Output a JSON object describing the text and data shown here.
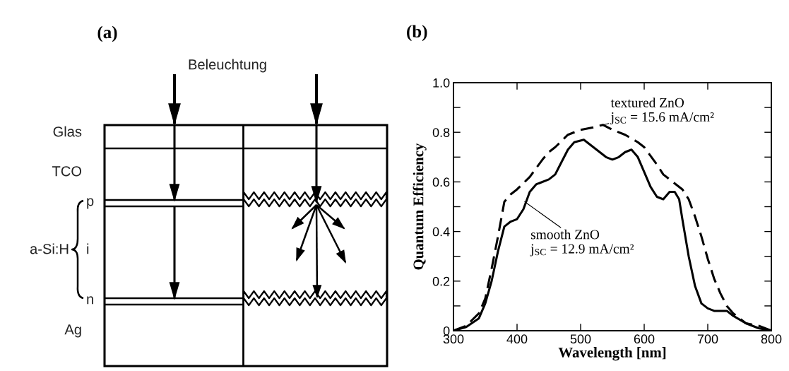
{
  "chart_data": [
    {
      "type": "other",
      "title": "(a)",
      "annotations": [
        "Beleuchtung",
        "Glas",
        "TCO",
        "p",
        "i",
        "n",
        "a-Si:H",
        "Ag"
      ]
    },
    {
      "type": "line",
      "title": "(b)",
      "xlabel": "Wavelength [nm]",
      "ylabel": "Quantum Efficiency",
      "xlim": [
        300,
        800
      ],
      "xticks": [
        300,
        400,
        500,
        600,
        700,
        800
      ],
      "ylim": [
        0,
        1
      ],
      "yticks": [
        0,
        {
          "value": 0.1,
          "label": null
        },
        0.2,
        {
          "value": 0.3,
          "label": null
        },
        0.4,
        {
          "value": 0.5,
          "label": null
        },
        0.6,
        {
          "value": 0.7,
          "label": null
        },
        0.8,
        {
          "value": 0.9,
          "label": null
        },
        {
          "value": 1,
          "label": "1.0"
        }
      ],
      "series": [
        {
          "color": "#000000",
          "line_style": "dashed",
          "x": [
            300,
            320,
            340,
            350,
            360,
            370,
            380,
            390,
            400,
            420,
            440,
            450,
            460,
            480,
            500,
            520,
            535,
            550,
            570,
            590,
            600,
            620,
            630,
            640,
            660,
            670,
            680,
            690,
            700,
            710,
            720,
            730,
            740,
            760,
            780,
            800
          ],
          "values": [
            0.0,
            0.02,
            0.07,
            0.13,
            0.25,
            0.38,
            0.52,
            0.55,
            0.57,
            0.62,
            0.69,
            0.72,
            0.74,
            0.79,
            0.81,
            0.82,
            0.83,
            0.81,
            0.79,
            0.76,
            0.74,
            0.67,
            0.63,
            0.61,
            0.57,
            0.53,
            0.46,
            0.38,
            0.29,
            0.21,
            0.15,
            0.1,
            0.07,
            0.03,
            0.02,
            0.0
          ]
        },
        {
          "color": "#000000",
          "line_style": "solid",
          "x": [
            300,
            320,
            340,
            350,
            360,
            370,
            380,
            390,
            400,
            410,
            420,
            430,
            450,
            460,
            470,
            480,
            490,
            505,
            520,
            540,
            550,
            560,
            570,
            580,
            590,
            600,
            610,
            620,
            630,
            640,
            648,
            655,
            660,
            670,
            680,
            690,
            700,
            710,
            720,
            730,
            740,
            760,
            780,
            800
          ],
          "values": [
            0.0,
            0.015,
            0.05,
            0.11,
            0.2,
            0.32,
            0.42,
            0.44,
            0.45,
            0.49,
            0.56,
            0.59,
            0.61,
            0.63,
            0.68,
            0.73,
            0.76,
            0.77,
            0.74,
            0.7,
            0.69,
            0.7,
            0.72,
            0.73,
            0.7,
            0.64,
            0.58,
            0.54,
            0.53,
            0.56,
            0.56,
            0.53,
            0.45,
            0.3,
            0.18,
            0.11,
            0.09,
            0.08,
            0.08,
            0.08,
            0.06,
            0.03,
            0.01,
            0.0
          ]
        }
      ],
      "annotations": [
        {
          "text": "textured ZnO\nj$_{SC}$ = 15.6 mA/cm²",
          "x": 535,
          "y": 0.83
        },
        {
          "text": "smooth ZnO\nj$_{SC}$ = 12.9 mA/cm²",
          "x": 412,
          "y": 0.52
        }
      ]
    }
  ]
}
